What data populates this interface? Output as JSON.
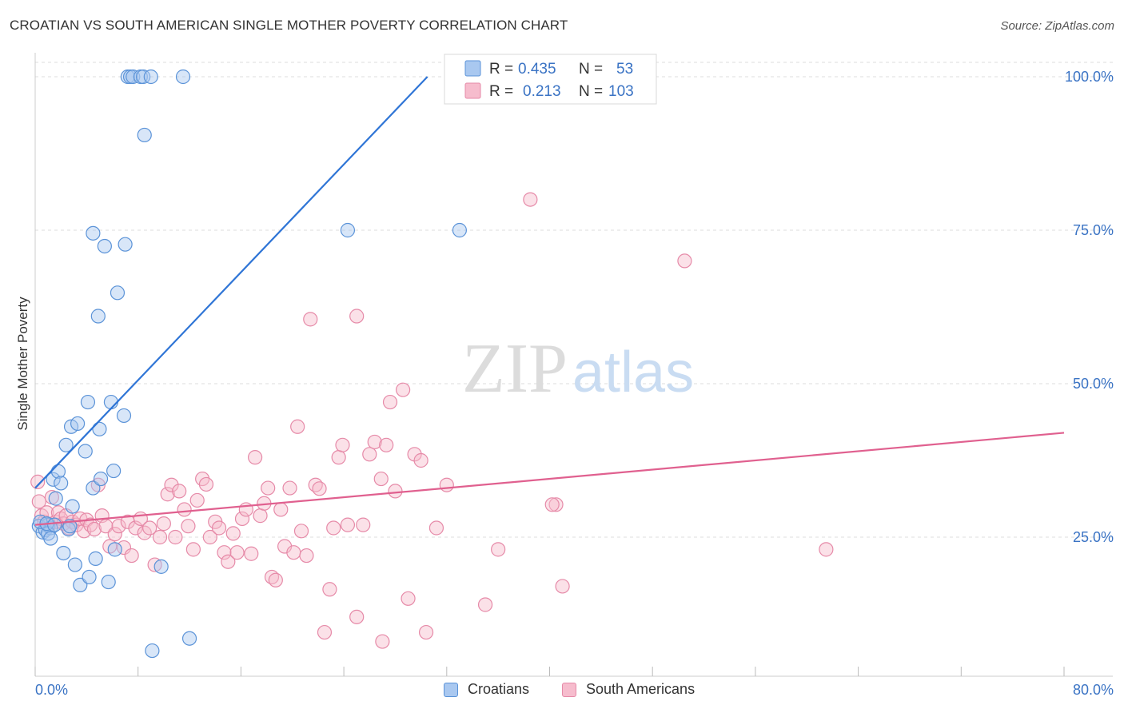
{
  "header": {
    "title": "CROATIAN VS SOUTH AMERICAN SINGLE MOTHER POVERTY CORRELATION CHART",
    "source": "Source: ZipAtlas.com"
  },
  "watermark": {
    "zip": "ZIP",
    "atlas": "atlas"
  },
  "colors": {
    "croatians_fill": "#a9c8f0",
    "croatians_stroke": "#5b93d8",
    "croatians_line": "#2f75d6",
    "south_fill": "#f6bccd",
    "south_stroke": "#e68aa8",
    "south_line": "#e0608f",
    "value_text": "#3a73c4",
    "grid": "#dddddd"
  },
  "legend_top": {
    "rows": [
      {
        "r_label": "R = ",
        "r_value": "0.435",
        "n_label": "N = ",
        "n_value": "53"
      },
      {
        "r_label": "R = ",
        "r_value": "0.213",
        "n_label": "N = ",
        "n_value": "103"
      }
    ]
  },
  "legend_bottom": [
    "Croatians",
    "South Americans"
  ],
  "chart_data": {
    "type": "scatter",
    "ylabel": "Single Mother Poverty",
    "xlabel": "",
    "xlim": [
      0,
      80
    ],
    "ylim": [
      0,
      100
    ],
    "x_tick_labels": {
      "left": "0.0%",
      "right": "80.0%"
    },
    "y_tick_labels": [
      {
        "value": 100,
        "label": "100.0%"
      },
      {
        "value": 75,
        "label": "75.0%"
      },
      {
        "value": 50,
        "label": "50.0%"
      },
      {
        "value": 25,
        "label": "25.0%"
      }
    ],
    "grid": true,
    "legend_position": "top-center",
    "series": [
      {
        "name": "Croatians",
        "r": 0.435,
        "n": 53,
        "trend": {
          "x0": 0.0,
          "y0": 33.0,
          "x1": 30.5,
          "y1": 100.0
        },
        "points": [
          [
            0.3,
            26.8
          ],
          [
            0.6,
            25.8
          ],
          [
            0.8,
            26.2
          ],
          [
            1.0,
            27.0
          ],
          [
            1.2,
            26.5
          ],
          [
            1.0,
            25.6
          ],
          [
            1.2,
            24.8
          ],
          [
            1.4,
            34.4
          ],
          [
            1.6,
            31.3
          ],
          [
            1.8,
            35.7
          ],
          [
            2.0,
            33.8
          ],
          [
            2.2,
            22.4
          ],
          [
            2.4,
            40.0
          ],
          [
            2.6,
            26.3
          ],
          [
            2.8,
            43.0
          ],
          [
            2.9,
            30.0
          ],
          [
            3.1,
            20.5
          ],
          [
            3.3,
            43.5
          ],
          [
            3.5,
            17.2
          ],
          [
            3.9,
            39.0
          ],
          [
            4.1,
            47.0
          ],
          [
            4.2,
            18.5
          ],
          [
            4.5,
            33.0
          ],
          [
            4.7,
            21.5
          ],
          [
            4.9,
            61.0
          ],
          [
            5.0,
            42.6
          ],
          [
            5.1,
            34.5
          ],
          [
            5.4,
            72.4
          ],
          [
            5.7,
            17.7
          ],
          [
            5.9,
            47.0
          ],
          [
            6.1,
            35.8
          ],
          [
            6.2,
            23.0
          ],
          [
            6.4,
            64.8
          ],
          [
            6.9,
            44.8
          ],
          [
            7.0,
            72.7
          ],
          [
            4.5,
            74.5
          ],
          [
            7.2,
            100
          ],
          [
            7.4,
            100
          ],
          [
            7.6,
            100
          ],
          [
            8.2,
            100
          ],
          [
            8.4,
            100
          ],
          [
            9.0,
            100
          ],
          [
            11.5,
            100
          ],
          [
            8.5,
            90.5
          ],
          [
            9.8,
            20.2
          ],
          [
            12.0,
            8.5
          ],
          [
            9.1,
            6.5
          ],
          [
            24.3,
            75.0
          ],
          [
            33.0,
            75.0
          ],
          [
            0.4,
            27.5
          ],
          [
            0.9,
            27.2
          ],
          [
            1.5,
            27.0
          ],
          [
            2.7,
            26.8
          ]
        ]
      },
      {
        "name": "South Americans",
        "r": 0.213,
        "n": 103,
        "trend": {
          "x0": 0.0,
          "y0": 27.0,
          "x1": 80.0,
          "y1": 42.0
        },
        "points": [
          [
            0.2,
            34.0
          ],
          [
            0.3,
            30.8
          ],
          [
            0.5,
            28.5
          ],
          [
            0.7,
            27.5
          ],
          [
            0.9,
            29.0
          ],
          [
            1.1,
            27.0
          ],
          [
            1.3,
            31.5
          ],
          [
            1.6,
            27.5
          ],
          [
            1.8,
            29.0
          ],
          [
            2.0,
            28.0
          ],
          [
            2.2,
            27.2
          ],
          [
            2.4,
            28.5
          ],
          [
            2.6,
            26.5
          ],
          [
            2.9,
            27.5
          ],
          [
            3.2,
            27.0
          ],
          [
            3.5,
            28.0
          ],
          [
            3.8,
            26.0
          ],
          [
            4.0,
            27.8
          ],
          [
            4.3,
            27.0
          ],
          [
            4.6,
            26.3
          ],
          [
            4.9,
            33.5
          ],
          [
            5.2,
            28.5
          ],
          [
            5.5,
            26.8
          ],
          [
            5.8,
            23.5
          ],
          [
            6.2,
            25.5
          ],
          [
            6.5,
            26.8
          ],
          [
            6.9,
            23.3
          ],
          [
            7.2,
            27.5
          ],
          [
            7.5,
            22.0
          ],
          [
            7.8,
            26.5
          ],
          [
            8.2,
            28.0
          ],
          [
            8.5,
            25.7
          ],
          [
            8.9,
            26.5
          ],
          [
            9.3,
            20.5
          ],
          [
            9.7,
            25.0
          ],
          [
            10.0,
            27.2
          ],
          [
            10.3,
            32.0
          ],
          [
            10.6,
            33.5
          ],
          [
            10.9,
            25.0
          ],
          [
            11.2,
            32.5
          ],
          [
            11.6,
            29.5
          ],
          [
            11.9,
            26.8
          ],
          [
            12.3,
            23.0
          ],
          [
            12.6,
            31.0
          ],
          [
            13.0,
            34.5
          ],
          [
            13.3,
            33.6
          ],
          [
            13.6,
            25.0
          ],
          [
            14.0,
            27.5
          ],
          [
            14.3,
            26.5
          ],
          [
            14.7,
            22.5
          ],
          [
            15.0,
            21.0
          ],
          [
            15.4,
            25.6
          ],
          [
            15.7,
            22.5
          ],
          [
            16.1,
            28.0
          ],
          [
            16.4,
            29.5
          ],
          [
            16.8,
            22.3
          ],
          [
            17.1,
            38.0
          ],
          [
            17.5,
            28.5
          ],
          [
            17.8,
            30.5
          ],
          [
            18.1,
            33.0
          ],
          [
            18.4,
            18.5
          ],
          [
            18.7,
            18.0
          ],
          [
            19.1,
            29.5
          ],
          [
            19.4,
            23.5
          ],
          [
            19.8,
            33.0
          ],
          [
            20.1,
            22.5
          ],
          [
            20.4,
            43.0
          ],
          [
            20.7,
            26.0
          ],
          [
            21.1,
            22.0
          ],
          [
            21.4,
            60.5
          ],
          [
            21.8,
            33.5
          ],
          [
            22.1,
            32.9
          ],
          [
            22.5,
            9.5
          ],
          [
            22.9,
            16.5
          ],
          [
            23.2,
            26.5
          ],
          [
            23.6,
            38.0
          ],
          [
            23.9,
            40.0
          ],
          [
            24.3,
            27.0
          ],
          [
            25.0,
            61.0
          ],
          [
            25.5,
            27.0
          ],
          [
            26.0,
            38.5
          ],
          [
            26.4,
            40.5
          ],
          [
            26.9,
            34.5
          ],
          [
            27.3,
            40.0
          ],
          [
            27.6,
            47.0
          ],
          [
            28.0,
            32.5
          ],
          [
            28.6,
            49.0
          ],
          [
            29.0,
            15.0
          ],
          [
            29.5,
            38.5
          ],
          [
            30.0,
            37.5
          ],
          [
            30.4,
            9.5
          ],
          [
            31.2,
            26.5
          ],
          [
            32.0,
            33.5
          ],
          [
            35.0,
            14.0
          ],
          [
            36.0,
            23.0
          ],
          [
            38.5,
            80.0
          ],
          [
            40.5,
            30.3
          ],
          [
            41.0,
            17.0
          ],
          [
            50.5,
            70.0
          ],
          [
            61.5,
            23.0
          ],
          [
            27.0,
            8.0
          ],
          [
            40.2,
            30.3
          ],
          [
            25.0,
            12.0
          ]
        ]
      }
    ]
  }
}
